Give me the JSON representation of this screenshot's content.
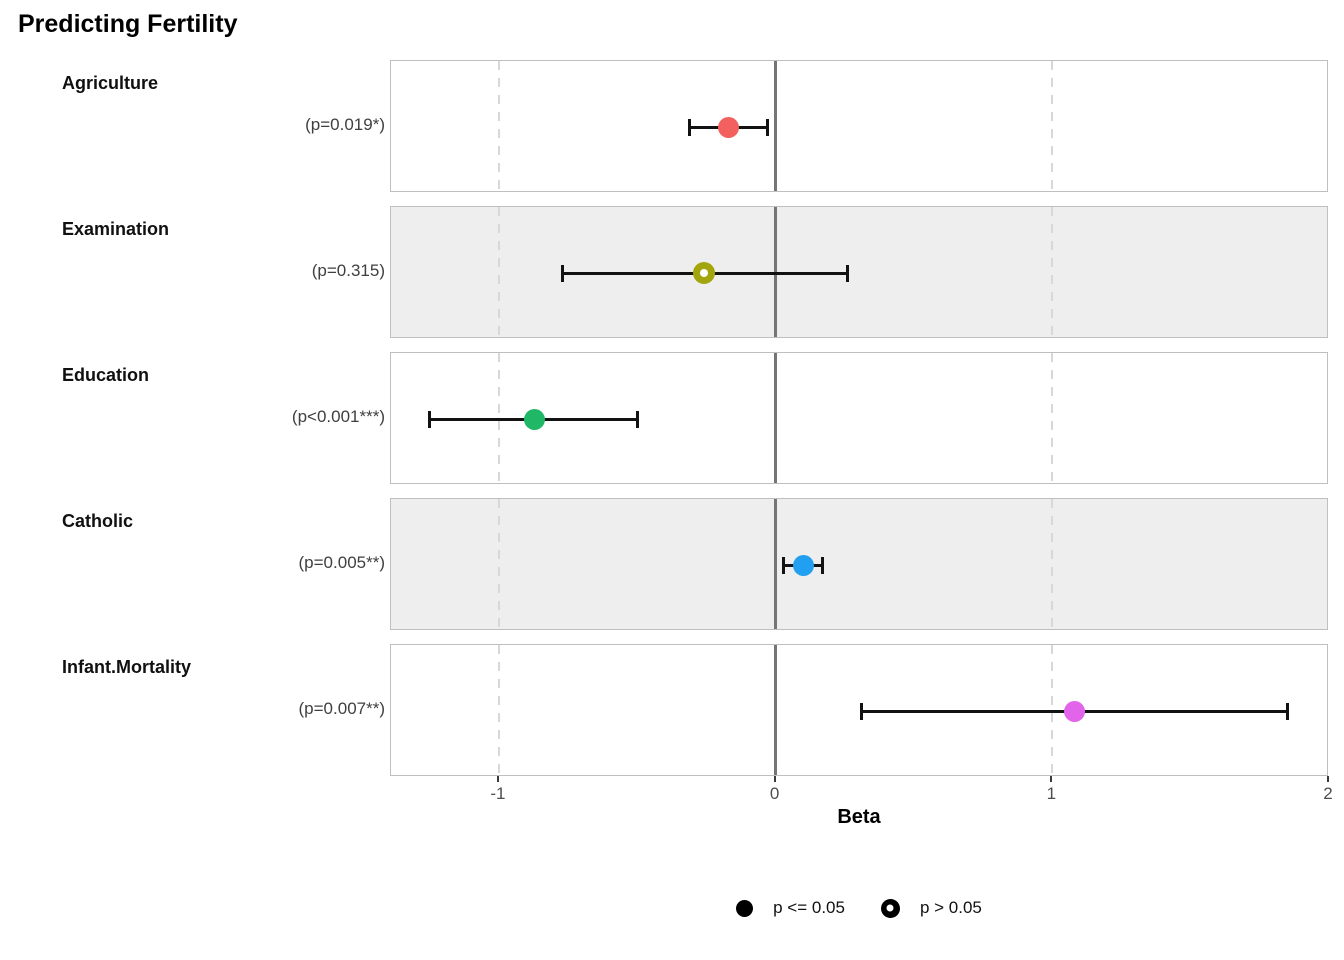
{
  "title": "Predicting Fertility",
  "axis": {
    "label": "Beta",
    "tick_labels": [
      "-1",
      "0",
      "1",
      "2"
    ],
    "tick_values": [
      -1,
      0,
      1,
      2
    ]
  },
  "legend": [
    {
      "marker": "filled-circle",
      "label": "p <= 0.05"
    },
    {
      "marker": "open-circle",
      "label": "p > 0.05"
    }
  ],
  "chart_data": {
    "type": "scatter",
    "subtype": "dot-whisker-forest-plot",
    "title": "Predicting Fertility",
    "xlabel": "Beta",
    "xlim": [
      -1.39,
      2.0
    ],
    "grid_dashed_at": [
      -1,
      1
    ],
    "zero_reference_line": 0,
    "rows": [
      {
        "term": "Agriculture",
        "p_label": "(p=0.019*)",
        "beta": -0.17,
        "ci_low": -0.31,
        "ci_high": -0.03,
        "color": "#f2615e",
        "significant": true
      },
      {
        "term": "Examination",
        "p_label": "(p=0.315)",
        "beta": -0.26,
        "ci_low": -0.77,
        "ci_high": 0.26,
        "color": "#a3a50d",
        "significant": false
      },
      {
        "term": "Education",
        "p_label": "(p<0.001***)",
        "beta": -0.87,
        "ci_low": -1.25,
        "ci_high": -0.5,
        "color": "#20b866",
        "significant": true
      },
      {
        "term": "Catholic",
        "p_label": "(p=0.005**)",
        "beta": 0.1,
        "ci_low": 0.03,
        "ci_high": 0.17,
        "color": "#219ff1",
        "significant": true
      },
      {
        "term": "Infant.Mortality",
        "p_label": "(p=0.007**)",
        "beta": 1.08,
        "ci_low": 0.31,
        "ci_high": 1.85,
        "color": "#e164ea",
        "significant": true
      }
    ]
  }
}
